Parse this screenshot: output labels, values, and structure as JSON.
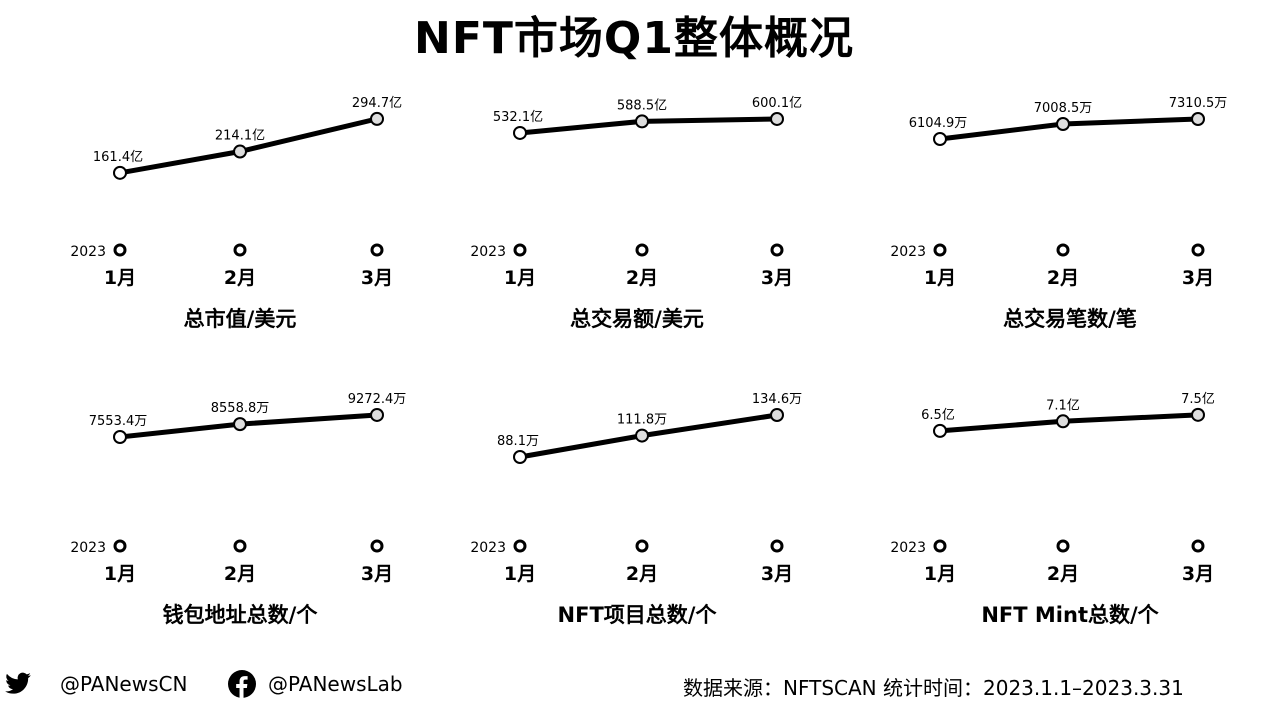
{
  "title": "NFT市场Q1整体概况",
  "chart_data": [
    {
      "type": "line",
      "title": "总市值/美元",
      "year_label": "2023",
      "categories": [
        "1月",
        "2月",
        "3月"
      ],
      "values": [
        161.4,
        214.1,
        294.7
      ],
      "labels": [
        "161.4亿",
        "214.1亿",
        "294.7亿"
      ],
      "unit": "亿",
      "ylim": [
        45,
        366
      ]
    },
    {
      "type": "line",
      "title": "总交易额/美元",
      "year_label": "2023",
      "categories": [
        "1月",
        "2月",
        "3月"
      ],
      "values": [
        532.1,
        588.5,
        600.1
      ],
      "labels": [
        "532.1亿",
        "588.5亿",
        "600.1亿"
      ],
      "unit": "亿",
      "ylim": [
        109,
        741
      ]
    },
    {
      "type": "line",
      "title": "总交易笔数/笔",
      "year_label": "2023",
      "categories": [
        "1月",
        "2月",
        "3月"
      ],
      "values": [
        6104.9,
        7008.5,
        7310.5
      ],
      "labels": [
        "6104.9万",
        "7008.5万",
        "7310.5万"
      ],
      "unit": "万",
      "ylim": [
        1220,
        9059
      ]
    },
    {
      "type": "line",
      "title": "钱包地址总数/个",
      "year_label": "2023",
      "categories": [
        "1月",
        "2月",
        "3月"
      ],
      "values": [
        7553.4,
        8558.8,
        9272.4
      ],
      "labels": [
        "7553.4万",
        "8558.8万",
        "9272.4万"
      ],
      "unit": "万",
      "ylim": [
        1383,
        11536
      ]
    },
    {
      "type": "line",
      "title": "NFT项目总数/个",
      "year_label": "2023",
      "categories": [
        "1月",
        "2月",
        "3月"
      ],
      "values": [
        88.1,
        111.8,
        134.6
      ],
      "labels": [
        "88.1万",
        "111.8万",
        "134.6万"
      ],
      "unit": "万",
      "ylim": [
        22.8,
        166.7
      ]
    },
    {
      "type": "line",
      "title": "NFT Mint总数/个",
      "year_label": "2023",
      "categories": [
        "1月",
        "2月",
        "3月"
      ],
      "values": [
        6.5,
        7.1,
        7.5
      ],
      "labels": [
        "6.5亿",
        "7.1亿",
        "7.5亿"
      ],
      "unit": "亿",
      "ylim": [
        1.19,
        9.3
      ]
    }
  ],
  "footer": {
    "twitter": "@PANewsCN",
    "facebook": "@PANewsLab",
    "source": "数据来源：NFTSCAN 统计时间：2023.1.1–2023.3.31"
  }
}
